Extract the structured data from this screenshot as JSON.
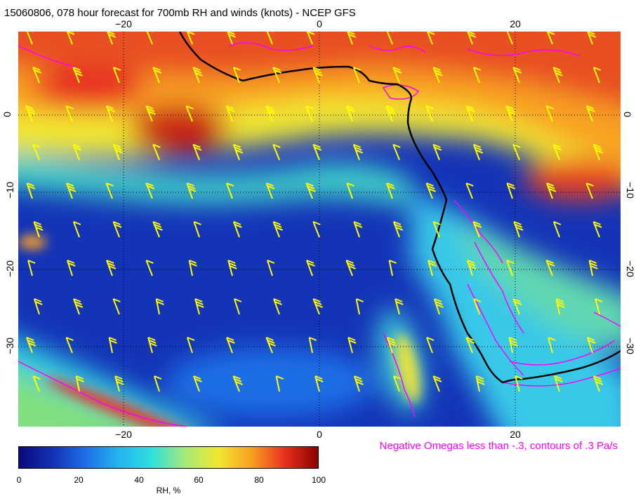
{
  "title": "15060806, 078 hour forecast for 700mb RH and winds (knots) - NCEP GFS",
  "map": {
    "lon_ticks": [
      "−20",
      "0",
      "20"
    ],
    "lat_ticks": [
      "0",
      "−10",
      "−20",
      "−30"
    ],
    "colors": {
      "coastline": "#000000",
      "grid": "#000000",
      "barbs": "#ffff00",
      "omega_contours": "#ff00ff"
    },
    "extent": {
      "lon_min": -30.5,
      "lon_max": 30.5,
      "lat_min": -40,
      "lat_max": 10
    }
  },
  "negative_omegas_text": "Negative Omegas less than -.3, contours of .3 Pa/s",
  "colorbar": {
    "ticks": [
      "0",
      "20",
      "40",
      "60",
      "80",
      "100"
    ],
    "label": "RH, %",
    "colors": [
      "#0a0a7a",
      "#1430b4",
      "#1e6ee6",
      "#22b4f0",
      "#2ee0dc",
      "#a8e878",
      "#f0e830",
      "#f8a020",
      "#e83020",
      "#8c0000"
    ]
  }
}
